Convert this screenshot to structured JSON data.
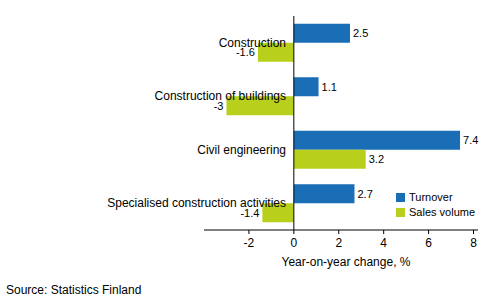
{
  "chart_data": {
    "type": "bar",
    "orientation": "horizontal",
    "categories": [
      "Construction",
      "Construction of buildings",
      "Civil engineering",
      "Specialised construction activities"
    ],
    "series": [
      {
        "name": "Turnover",
        "color": "#1a6eb5",
        "values": [
          2.5,
          1.1,
          7.4,
          2.7
        ]
      },
      {
        "name": "Sales volume",
        "color": "#b8cf1c",
        "values": [
          -1.6,
          -3.0,
          3.2,
          -1.4
        ]
      }
    ],
    "xlabel": "Year-on-year change, %",
    "xlim": [
      -4,
      8.2
    ],
    "xticks": [
      -2,
      0,
      2,
      4,
      6,
      8
    ],
    "data_labels": true,
    "legend": "lower right",
    "grid": false,
    "source": "Source: Statistics Finland"
  }
}
